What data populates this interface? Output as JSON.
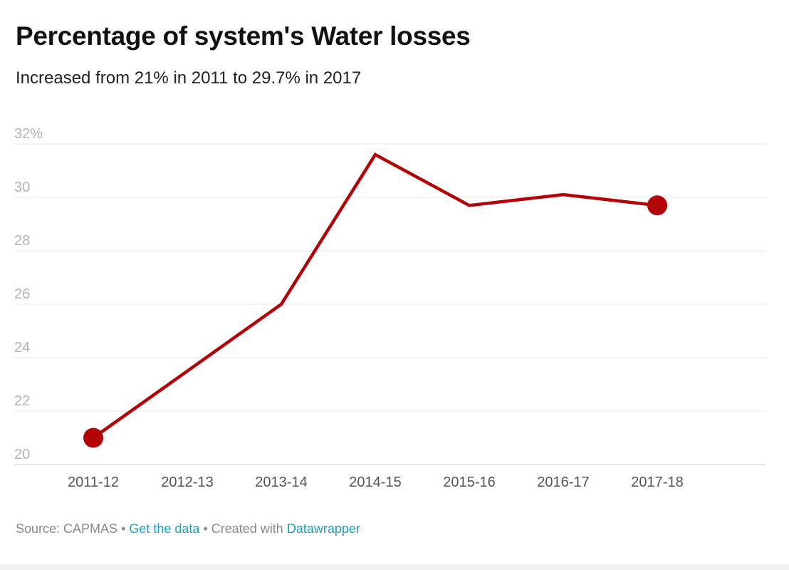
{
  "title": "Percentage of system's Water losses",
  "subtitle": "Increased from 21% in 2011 to 29.7% in 2017",
  "chart_data": {
    "type": "line",
    "categories": [
      "2011-12",
      "2012-13",
      "2013-14",
      "2014-15",
      "2015-16",
      "2016-17",
      "2017-18"
    ],
    "series": [
      {
        "values": [
          21.0,
          23.5,
          26.0,
          31.6,
          29.7,
          30.1,
          29.7
        ],
        "color": "#b30309"
      }
    ],
    "highlighted_points": [
      0,
      6
    ],
    "yticks": [
      20,
      22,
      24,
      26,
      28,
      30,
      32
    ],
    "ytick_labels": [
      "20",
      "22",
      "24",
      "26",
      "28",
      "30",
      "32%"
    ],
    "ylim": [
      20,
      32
    ],
    "grid": true,
    "xlabel": "",
    "ylabel": ""
  },
  "footer": {
    "source_label": "Source: CAPMAS",
    "separator": " • ",
    "data_link": "Get the data",
    "created_with": "Created with",
    "tool_link": "Datawrapper"
  },
  "colors": {
    "line": "#b30309",
    "grid": "#e6e6e6",
    "axis_label": "#b3b3b3",
    "tick_label": "#555555",
    "link": "#1d9bc3"
  }
}
